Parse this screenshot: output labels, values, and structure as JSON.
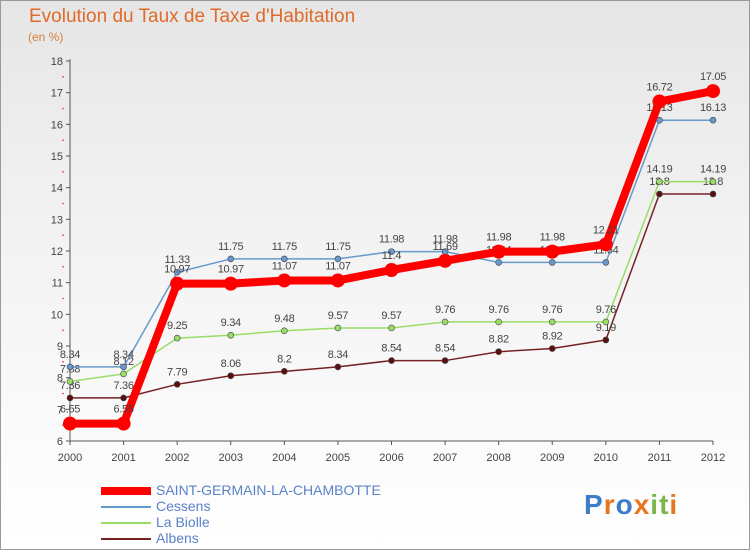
{
  "chart_data": {
    "type": "line",
    "title": "Evolution du Taux de Taxe d'Habitation",
    "subtitle": "(en %)",
    "x": [
      "2000",
      "2001",
      "2002",
      "2003",
      "2004",
      "2005",
      "2006",
      "2007",
      "2008",
      "2009",
      "2010",
      "2011",
      "2012"
    ],
    "ylim": [
      6,
      18
    ],
    "yticks": [
      6,
      7,
      8,
      9,
      10,
      11,
      12,
      13,
      14,
      15,
      16,
      17,
      18
    ],
    "grid": false,
    "series": [
      {
        "name": "SAINT-GERMAIN-LA-CHAMBOTTE",
        "color": "#ff0000",
        "values": [
          6.55,
          6.55,
          10.97,
          10.97,
          11.07,
          11.07,
          11.4,
          11.69,
          11.98,
          11.98,
          12.21,
          16.72,
          17.05
        ],
        "labels": [
          "6.55",
          "6.55",
          "10.97",
          "10.97",
          "11.07",
          "11.07",
          "11.4",
          "11.69",
          "11.98",
          "11.98",
          "12.21",
          "16.72",
          "17.05"
        ]
      },
      {
        "name": "Cessens",
        "color": "#6699cc",
        "values": [
          8.34,
          8.34,
          11.33,
          11.75,
          11.75,
          11.75,
          11.98,
          11.98,
          11.64,
          11.64,
          11.64,
          16.13,
          16.13
        ],
        "labels": [
          "8.34",
          "8.34",
          "11.33",
          "11.75",
          "11.75",
          "11.75",
          "11.98",
          "11.98",
          "11.64",
          "11.64",
          "11.64",
          "16.13",
          "16.13"
        ]
      },
      {
        "name": "La Biolle",
        "color": "#99dd66",
        "values": [
          7.88,
          8.12,
          9.25,
          9.34,
          9.48,
          9.57,
          9.57,
          9.76,
          9.76,
          9.76,
          9.76,
          14.19,
          14.19
        ],
        "labels": [
          "7.88",
          "8.12",
          "9.25",
          "9.34",
          "9.48",
          "9.57",
          "9.57",
          "9.76",
          "9.76",
          "9.76",
          "9.76",
          "14.19",
          "14.19"
        ]
      },
      {
        "name": "Albens",
        "color": "#772222",
        "values": [
          7.36,
          7.36,
          7.79,
          8.06,
          8.2,
          8.34,
          8.54,
          8.54,
          8.82,
          8.92,
          9.19,
          13.8,
          13.8
        ],
        "labels": [
          "7.36",
          "7.36",
          "7.79",
          "8.06",
          "8.2",
          "8.34",
          "8.54",
          "8.54",
          "8.82",
          "8.92",
          "9.19",
          "13.8",
          "13.8"
        ]
      }
    ]
  },
  "logo": {
    "letters": [
      "P",
      "r",
      "o",
      "x",
      "i",
      "t",
      "i"
    ],
    "colors": [
      "#3d7cc9",
      "#e8761e",
      "#3d7cc9",
      "#e8761e",
      "#7ab648",
      "#7ab648",
      "#e8761e"
    ]
  }
}
